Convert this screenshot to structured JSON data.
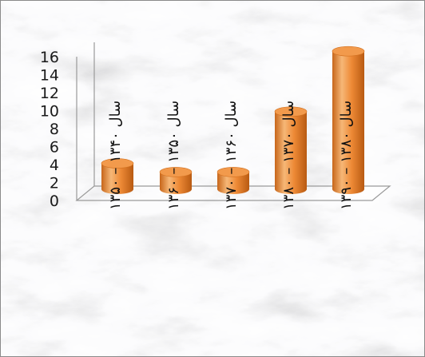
{
  "chart_data": {
    "type": "bar",
    "style": "3d-cylinder",
    "categories": [
      "سال ۱۳۴۰ – ۱۳۵۰",
      "سال ۱۳۵۰ – ۱۳۶۰",
      "سال ۱۳۶۰ – ۱۳۷۰",
      "سال ۱۳۷۰ – ۱۳۸۰",
      "سال ۱۳۸۰ – ۱۳۹۰"
    ],
    "values": [
      3,
      2,
      2,
      9,
      16
    ],
    "ylim": [
      0,
      16
    ],
    "yticks": [
      "0",
      "2",
      "4",
      "6",
      "8",
      "10",
      "12",
      "14",
      "16"
    ],
    "title": "",
    "xlabel": "",
    "ylabel": "",
    "grid": false,
    "legend": "none",
    "colors": {
      "bar_light": "#f6b777",
      "bar_mid": "#ee8a36",
      "bar_dark": "#b85a12",
      "bar_top": "#f29a4c",
      "axis": "#9a9a9a",
      "background": "#e9e9e9"
    }
  }
}
